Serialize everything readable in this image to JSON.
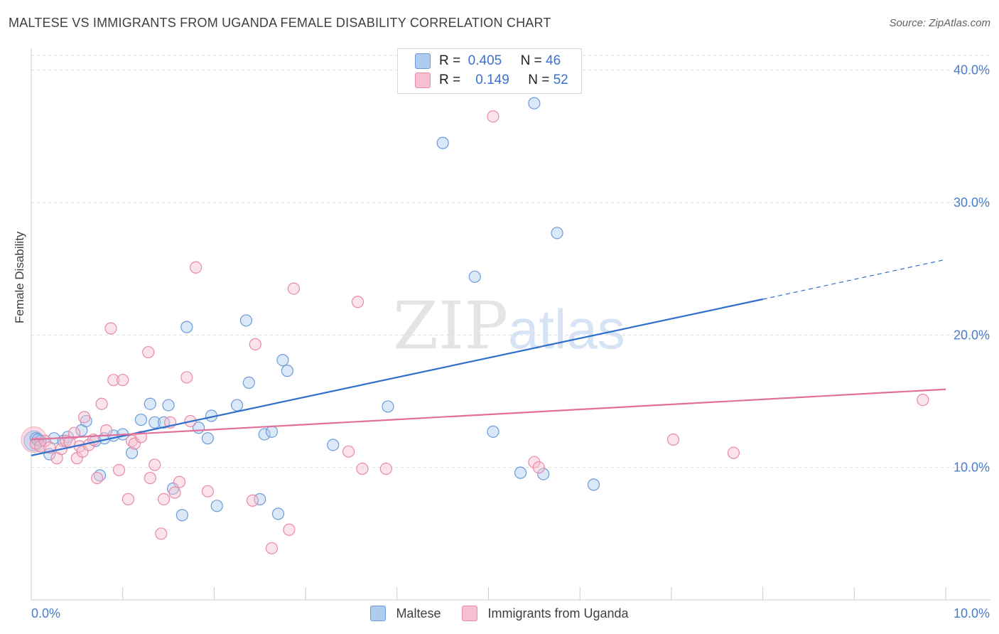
{
  "header": {
    "title": "MALTESE VS IMMIGRANTS FROM UGANDA FEMALE DISABILITY CORRELATION CHART",
    "source": "Source: ZipAtlas.com"
  },
  "colors": {
    "blue_fill": "#aecbf0",
    "blue_stroke": "#6c9bd8",
    "blue_line": "#2f6fcc",
    "pink_fill": "#f7c0d0",
    "pink_stroke": "#e88aa8",
    "pink_line": "#e0709a",
    "tick_label": "#4a7cc9",
    "grid": "#dddddd"
  },
  "legend_top": {
    "rows": [
      {
        "r_label": "R =",
        "r_value": "0.405",
        "n_label": "N =",
        "n_value": "46"
      },
      {
        "r_label": "R =",
        "r_value": "0.149",
        "n_label": "N =",
        "n_value": "52"
      }
    ]
  },
  "chart_data": {
    "type": "scatter",
    "title": "MALTESE VS IMMIGRANTS FROM UGANDA FEMALE DISABILITY CORRELATION CHART",
    "xlabel": "",
    "ylabel": "Female Disability",
    "xlim": [
      0,
      10
    ],
    "ylim": [
      0,
      40
    ],
    "x_tick_labels": [
      "0.0%",
      "10.0%"
    ],
    "y_ticks": [
      10,
      20,
      30,
      40
    ],
    "y_tick_labels": [
      "10.0%",
      "20.0%",
      "30.0%",
      "40.0%"
    ],
    "grid": true,
    "watermark": "ZIPatlas",
    "legend_position": "bottom",
    "series": [
      {
        "name": "Maltese",
        "color": "#aecbf0",
        "points": [
          [
            0.05,
            12.2
          ],
          [
            0.1,
            12.0
          ],
          [
            0.2,
            11.0
          ],
          [
            0.25,
            12.2
          ],
          [
            0.35,
            12.0
          ],
          [
            0.4,
            12.3
          ],
          [
            0.55,
            12.8
          ],
          [
            0.6,
            13.5
          ],
          [
            0.7,
            12.0
          ],
          [
            0.75,
            9.4
          ],
          [
            0.8,
            12.2
          ],
          [
            0.9,
            12.4
          ],
          [
            1.0,
            12.5
          ],
          [
            1.1,
            11.1
          ],
          [
            1.2,
            13.6
          ],
          [
            1.3,
            14.8
          ],
          [
            1.35,
            13.4
          ],
          [
            1.45,
            13.4
          ],
          [
            1.5,
            14.7
          ],
          [
            1.55,
            8.4
          ],
          [
            1.65,
            6.4
          ],
          [
            1.7,
            20.6
          ],
          [
            1.83,
            13.0
          ],
          [
            1.93,
            12.2
          ],
          [
            1.97,
            13.9
          ],
          [
            2.03,
            7.1
          ],
          [
            2.25,
            14.7
          ],
          [
            2.35,
            21.1
          ],
          [
            2.38,
            16.4
          ],
          [
            2.5,
            7.6
          ],
          [
            2.55,
            12.5
          ],
          [
            2.63,
            12.7
          ],
          [
            2.7,
            6.5
          ],
          [
            2.75,
            18.1
          ],
          [
            2.8,
            17.3
          ],
          [
            3.3,
            11.7
          ],
          [
            3.9,
            14.6
          ],
          [
            4.5,
            34.5
          ],
          [
            4.85,
            24.4
          ],
          [
            5.05,
            12.7
          ],
          [
            5.35,
            9.6
          ],
          [
            5.5,
            37.5
          ],
          [
            5.6,
            9.5
          ],
          [
            5.75,
            27.7
          ],
          [
            6.15,
            8.7
          ],
          [
            0.07,
            12.1
          ]
        ]
      },
      {
        "name": "Immigrants from Uganda",
        "color": "#f7c0d0",
        "points": [
          [
            0.05,
            11.8
          ],
          [
            0.1,
            11.6
          ],
          [
            0.15,
            12.0
          ],
          [
            0.2,
            11.5
          ],
          [
            0.28,
            10.7
          ],
          [
            0.33,
            11.4
          ],
          [
            0.38,
            12.0
          ],
          [
            0.42,
            11.9
          ],
          [
            0.47,
            12.6
          ],
          [
            0.5,
            10.7
          ],
          [
            0.53,
            11.6
          ],
          [
            0.56,
            11.2
          ],
          [
            0.58,
            13.8
          ],
          [
            0.63,
            11.7
          ],
          [
            0.68,
            12.1
          ],
          [
            0.72,
            9.2
          ],
          [
            0.77,
            14.8
          ],
          [
            0.82,
            12.8
          ],
          [
            0.87,
            20.5
          ],
          [
            0.9,
            16.6
          ],
          [
            0.96,
            9.8
          ],
          [
            1.0,
            16.6
          ],
          [
            1.06,
            7.6
          ],
          [
            1.1,
            12.0
          ],
          [
            1.13,
            11.8
          ],
          [
            1.2,
            12.3
          ],
          [
            1.28,
            18.7
          ],
          [
            1.3,
            9.2
          ],
          [
            1.35,
            10.2
          ],
          [
            1.42,
            5.0
          ],
          [
            1.45,
            7.6
          ],
          [
            1.52,
            13.4
          ],
          [
            1.57,
            8.1
          ],
          [
            1.62,
            8.9
          ],
          [
            1.7,
            16.8
          ],
          [
            1.74,
            13.5
          ],
          [
            1.8,
            25.1
          ],
          [
            1.93,
            8.2
          ],
          [
            2.42,
            7.5
          ],
          [
            2.45,
            19.3
          ],
          [
            2.63,
            3.9
          ],
          [
            2.82,
            5.3
          ],
          [
            2.87,
            23.5
          ],
          [
            3.47,
            11.2
          ],
          [
            3.57,
            22.5
          ],
          [
            3.62,
            9.9
          ],
          [
            3.88,
            9.9
          ],
          [
            5.05,
            36.5
          ],
          [
            5.5,
            10.4
          ],
          [
            5.55,
            10.0
          ],
          [
            7.02,
            12.1
          ],
          [
            7.68,
            11.1
          ]
        ]
      },
      {
        "name": "Immigrants from Uganda (high x)",
        "color": "#f7c0d0",
        "points": [
          [
            9.75,
            15.1
          ]
        ]
      }
    ],
    "trend_lines": [
      {
        "series": "Maltese",
        "x_start": 0,
        "y_start": 10.9,
        "x_end": 8.0,
        "y_end": 22.7,
        "dashed_to_x": 10.0,
        "dashed_to_y": 25.7
      },
      {
        "series": "Immigrants from Uganda",
        "x_start": 0,
        "y_start": 12.1,
        "x_end": 10.0,
        "y_end": 15.9
      }
    ]
  },
  "legend_bottom": {
    "items": [
      {
        "label": "Maltese"
      },
      {
        "label": "Immigrants from Uganda"
      }
    ]
  }
}
